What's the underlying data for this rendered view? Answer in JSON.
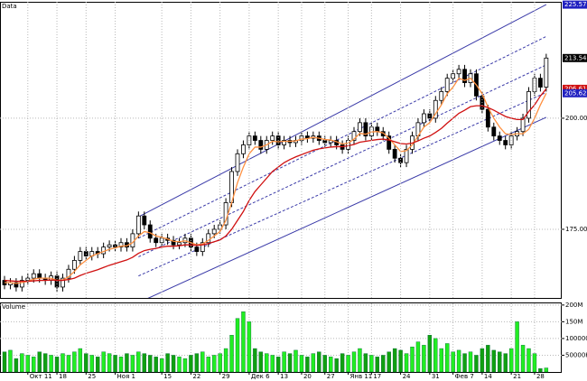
{
  "chart_data": {
    "type": "candlestick",
    "title": "Data",
    "categories": [
      null,
      null,
      null,
      null,
      "Окт 11",
      null,
      null,
      null,
      null,
      "18",
      null,
      null,
      null,
      null,
      "25",
      null,
      null,
      null,
      null,
      "Ноя 1",
      null,
      null,
      null,
      null,
      null,
      null,
      null,
      "15",
      null,
      null,
      null,
      null,
      "22",
      null,
      null,
      null,
      null,
      "29",
      null,
      null,
      null,
      null,
      "Дек 6",
      null,
      null,
      null,
      null,
      "13",
      null,
      null,
      null,
      "20",
      null,
      null,
      null,
      "27",
      null,
      null,
      null,
      "Янв 11",
      null,
      null,
      null,
      "17",
      null,
      null,
      null,
      null,
      "24",
      null,
      null,
      null,
      null,
      "31",
      null,
      null,
      null,
      "Фев 7",
      null,
      null,
      null,
      null,
      "14",
      null,
      null,
      null,
      null,
      "21",
      null,
      null,
      null,
      "28",
      null,
      null
    ],
    "open": [
      163.5,
      162.5,
      163,
      162,
      163.5,
      164,
      165,
      164,
      163.5,
      164.5,
      162,
      164,
      166,
      168,
      170,
      169,
      170,
      169.5,
      171,
      171.5,
      171,
      172,
      171,
      174,
      178,
      176,
      173,
      172,
      173,
      172.5,
      171.5,
      172,
      173,
      171,
      170,
      172,
      174,
      175,
      176,
      181,
      188,
      192,
      194,
      196,
      195,
      193,
      195,
      196,
      194,
      195,
      194.5,
      195,
      196,
      195.5,
      196,
      195,
      194.5,
      195,
      194,
      193,
      195,
      197,
      199,
      196,
      198,
      197,
      196,
      193,
      191,
      190,
      193,
      196,
      199,
      201,
      200,
      204,
      206,
      209,
      210,
      211,
      208,
      210,
      205,
      202,
      198,
      196,
      195,
      194,
      196,
      197,
      200,
      206,
      209,
      207
    ],
    "high": [
      164.5,
      164,
      164,
      164.5,
      165,
      166,
      166,
      165,
      165.5,
      165.5,
      165,
      167,
      169,
      171,
      171,
      171,
      171,
      172,
      172.5,
      172.5,
      173,
      173,
      175,
      179,
      179,
      177,
      174,
      174,
      174,
      173.5,
      173,
      174,
      174,
      172,
      173,
      175,
      176,
      177,
      182,
      189,
      193,
      195,
      197,
      197,
      196,
      196,
      197,
      197,
      196,
      196,
      196,
      197,
      197,
      197,
      197,
      196,
      196,
      196,
      195,
      196,
      198,
      200,
      200,
      199,
      199,
      198,
      197,
      194,
      192,
      194,
      197,
      200,
      202,
      202,
      205,
      207,
      210,
      211,
      212,
      212,
      211,
      211,
      206,
      203,
      199,
      197,
      196,
      197,
      198,
      201,
      207,
      210,
      210,
      214.5
    ],
    "low": [
      161.5,
      161.5,
      161,
      161,
      162.5,
      163,
      163,
      162.5,
      162.5,
      161,
      161,
      163,
      165,
      167,
      168,
      168,
      168.5,
      168.5,
      170,
      170,
      170,
      170,
      170,
      173,
      175,
      172,
      171,
      171,
      171.5,
      170.5,
      170.5,
      171,
      170,
      169,
      169,
      171,
      173,
      174,
      175,
      180,
      187,
      191,
      193,
      194,
      192,
      192,
      194,
      193,
      193,
      193.5,
      193.5,
      194,
      194.5,
      194.5,
      194,
      193.5,
      193.5,
      193,
      192,
      192,
      194,
      196,
      195,
      195,
      196,
      195,
      192,
      190,
      189,
      189,
      192,
      195,
      198,
      199,
      199,
      203,
      205,
      208,
      209,
      207,
      207,
      204,
      201,
      197,
      195,
      194,
      193,
      193,
      195,
      196,
      199,
      205,
      206,
      206
    ],
    "close": [
      162.5,
      163,
      162,
      163.5,
      164,
      165,
      164,
      163.5,
      164.5,
      162,
      164,
      166,
      168,
      170,
      169,
      170,
      169.5,
      171,
      171.5,
      171,
      172,
      171,
      174,
      178,
      176,
      173,
      172,
      173,
      172.5,
      171.5,
      172,
      173,
      171,
      170,
      172,
      174,
      175,
      176,
      181,
      188,
      192,
      194,
      196,
      195,
      193,
      195,
      196,
      194,
      195,
      194.5,
      195,
      196,
      195.5,
      196,
      195,
      194.5,
      195,
      194,
      193,
      195,
      197,
      199,
      196,
      198,
      197,
      196,
      193,
      191,
      190,
      193,
      196,
      199,
      201,
      200,
      204,
      206,
      209,
      210,
      211,
      208,
      210,
      205,
      202,
      198,
      196,
      195,
      194,
      196,
      197,
      200,
      206,
      209,
      207,
      213.54
    ],
    "ylim": [
      159.55,
      226.2
    ],
    "yticks": [
      {
        "value": 175,
        "label": "175.00"
      },
      {
        "value": 200,
        "label": "200.00"
      }
    ],
    "grid": true,
    "up_color": "#ffffff",
    "down_color": "#000000",
    "lines": [
      {
        "color": "#ff9040",
        "values": [
          163,
          163,
          162.8,
          163,
          163.3,
          163.8,
          164,
          164,
          164,
          163.5,
          163.6,
          164.3,
          165.5,
          167,
          168,
          169,
          169.5,
          170,
          170.5,
          170.8,
          171.2,
          171.3,
          172,
          173.5,
          174.5,
          174.2,
          173.5,
          173.2,
          172.8,
          172.3,
          172.2,
          172.4,
          172,
          171.5,
          171.7,
          172.5,
          173.5,
          174.5,
          177,
          181,
          185.5,
          189,
          192,
          193.5,
          193.5,
          194,
          194.8,
          194.7,
          194.8,
          194.8,
          194.9,
          195.3,
          195.4,
          195.7,
          195.5,
          195.2,
          195.1,
          194.7,
          194.2,
          194.4,
          195.3,
          196.6,
          196.4,
          196.9,
          197,
          196.7,
          195.5,
          194,
          192.5,
          192.7,
          194,
          196,
          198,
          199,
          201,
          203,
          205.5,
          207,
          209,
          208.5,
          209,
          207.5,
          205.5,
          202.5,
          200,
          198,
          196.5,
          196.3,
          196.5,
          196.5,
          197.5,
          200,
          203,
          205.62
        ]
      },
      {
        "color": "#d01010",
        "values": [
          163.5,
          163.4,
          163.3,
          163.3,
          163.3,
          163.4,
          163.5,
          163.5,
          163.6,
          163.5,
          163.5,
          163.7,
          164,
          164.6,
          165.1,
          165.5,
          165.9,
          166.4,
          166.9,
          167.3,
          167.7,
          168.1,
          168.7,
          169.6,
          170.2,
          170.5,
          170.7,
          171,
          171.2,
          171.2,
          171.3,
          171.5,
          171.5,
          171.4,
          171.5,
          171.8,
          172.2,
          172.6,
          173.5,
          175,
          177,
          179,
          181.5,
          183.5,
          185,
          186.5,
          188,
          189,
          190,
          190.7,
          191.3,
          191.8,
          192.3,
          192.8,
          193.1,
          193.3,
          193.5,
          193.6,
          193.6,
          193.8,
          194.1,
          194.6,
          194.8,
          195,
          195.2,
          195.3,
          195.1,
          194.7,
          194.3,
          194.2,
          194.4,
          194.9,
          195.5,
          196,
          196.8,
          197.7,
          198.9,
          200,
          201.1,
          201.8,
          202.6,
          202.8,
          202.8,
          202.4,
          201.8,
          201.1,
          200.4,
          200,
          199.7,
          199.7,
          201.5,
          203,
          205,
          206.61
        ]
      }
    ],
    "channel": {
      "color": "#3a3aa8",
      "from": 23,
      "to": 93,
      "lines": [
        {
          "start": 177.8,
          "end": 225.57,
          "dashed": false
        },
        {
          "start": 173,
          "end": 218.4,
          "dashed": true
        },
        {
          "start": 168.8,
          "end": 212,
          "dashed": true
        },
        {
          "start": 164.5,
          "end": 205.8,
          "dashed": true
        },
        {
          "start": 158.5,
          "end": 200.2,
          "dashed": false
        }
      ]
    },
    "price_markers": [
      {
        "value": 225.57,
        "color": "#2020c0"
      },
      {
        "value": 213.54,
        "color": "#000000"
      },
      {
        "value": 206.61,
        "color": "#d01010"
      },
      {
        "value": 205.62,
        "color": "#2020c0"
      }
    ],
    "volume": {
      "title": "Volume",
      "up_color": "#22ee22",
      "down_color": "#10a010",
      "ylim": [
        0,
        205
      ],
      "yticks": [
        {
          "value": 50,
          "label": "50000K"
        },
        {
          "value": 100,
          "label": "100000K"
        },
        {
          "value": 150,
          "label": "150M"
        },
        {
          "value": 200,
          "label": "200M"
        }
      ],
      "values": [
        60,
        65,
        40,
        55,
        50,
        45,
        60,
        55,
        50,
        45,
        55,
        50,
        60,
        70,
        55,
        50,
        45,
        60,
        55,
        50,
        45,
        55,
        50,
        60,
        55,
        50,
        45,
        40,
        55,
        50,
        45,
        40,
        50,
        55,
        60,
        45,
        50,
        55,
        70,
        110,
        160,
        180,
        150,
        70,
        60,
        55,
        50,
        45,
        60,
        55,
        65,
        50,
        45,
        55,
        60,
        50,
        45,
        40,
        55,
        50,
        60,
        70,
        55,
        50,
        45,
        50,
        60,
        70,
        65,
        55,
        75,
        90,
        80,
        110,
        100,
        70,
        85,
        60,
        65,
        55,
        60,
        50,
        70,
        80,
        65,
        60,
        55,
        70,
        150,
        80,
        70,
        55,
        10,
        12
      ]
    }
  }
}
